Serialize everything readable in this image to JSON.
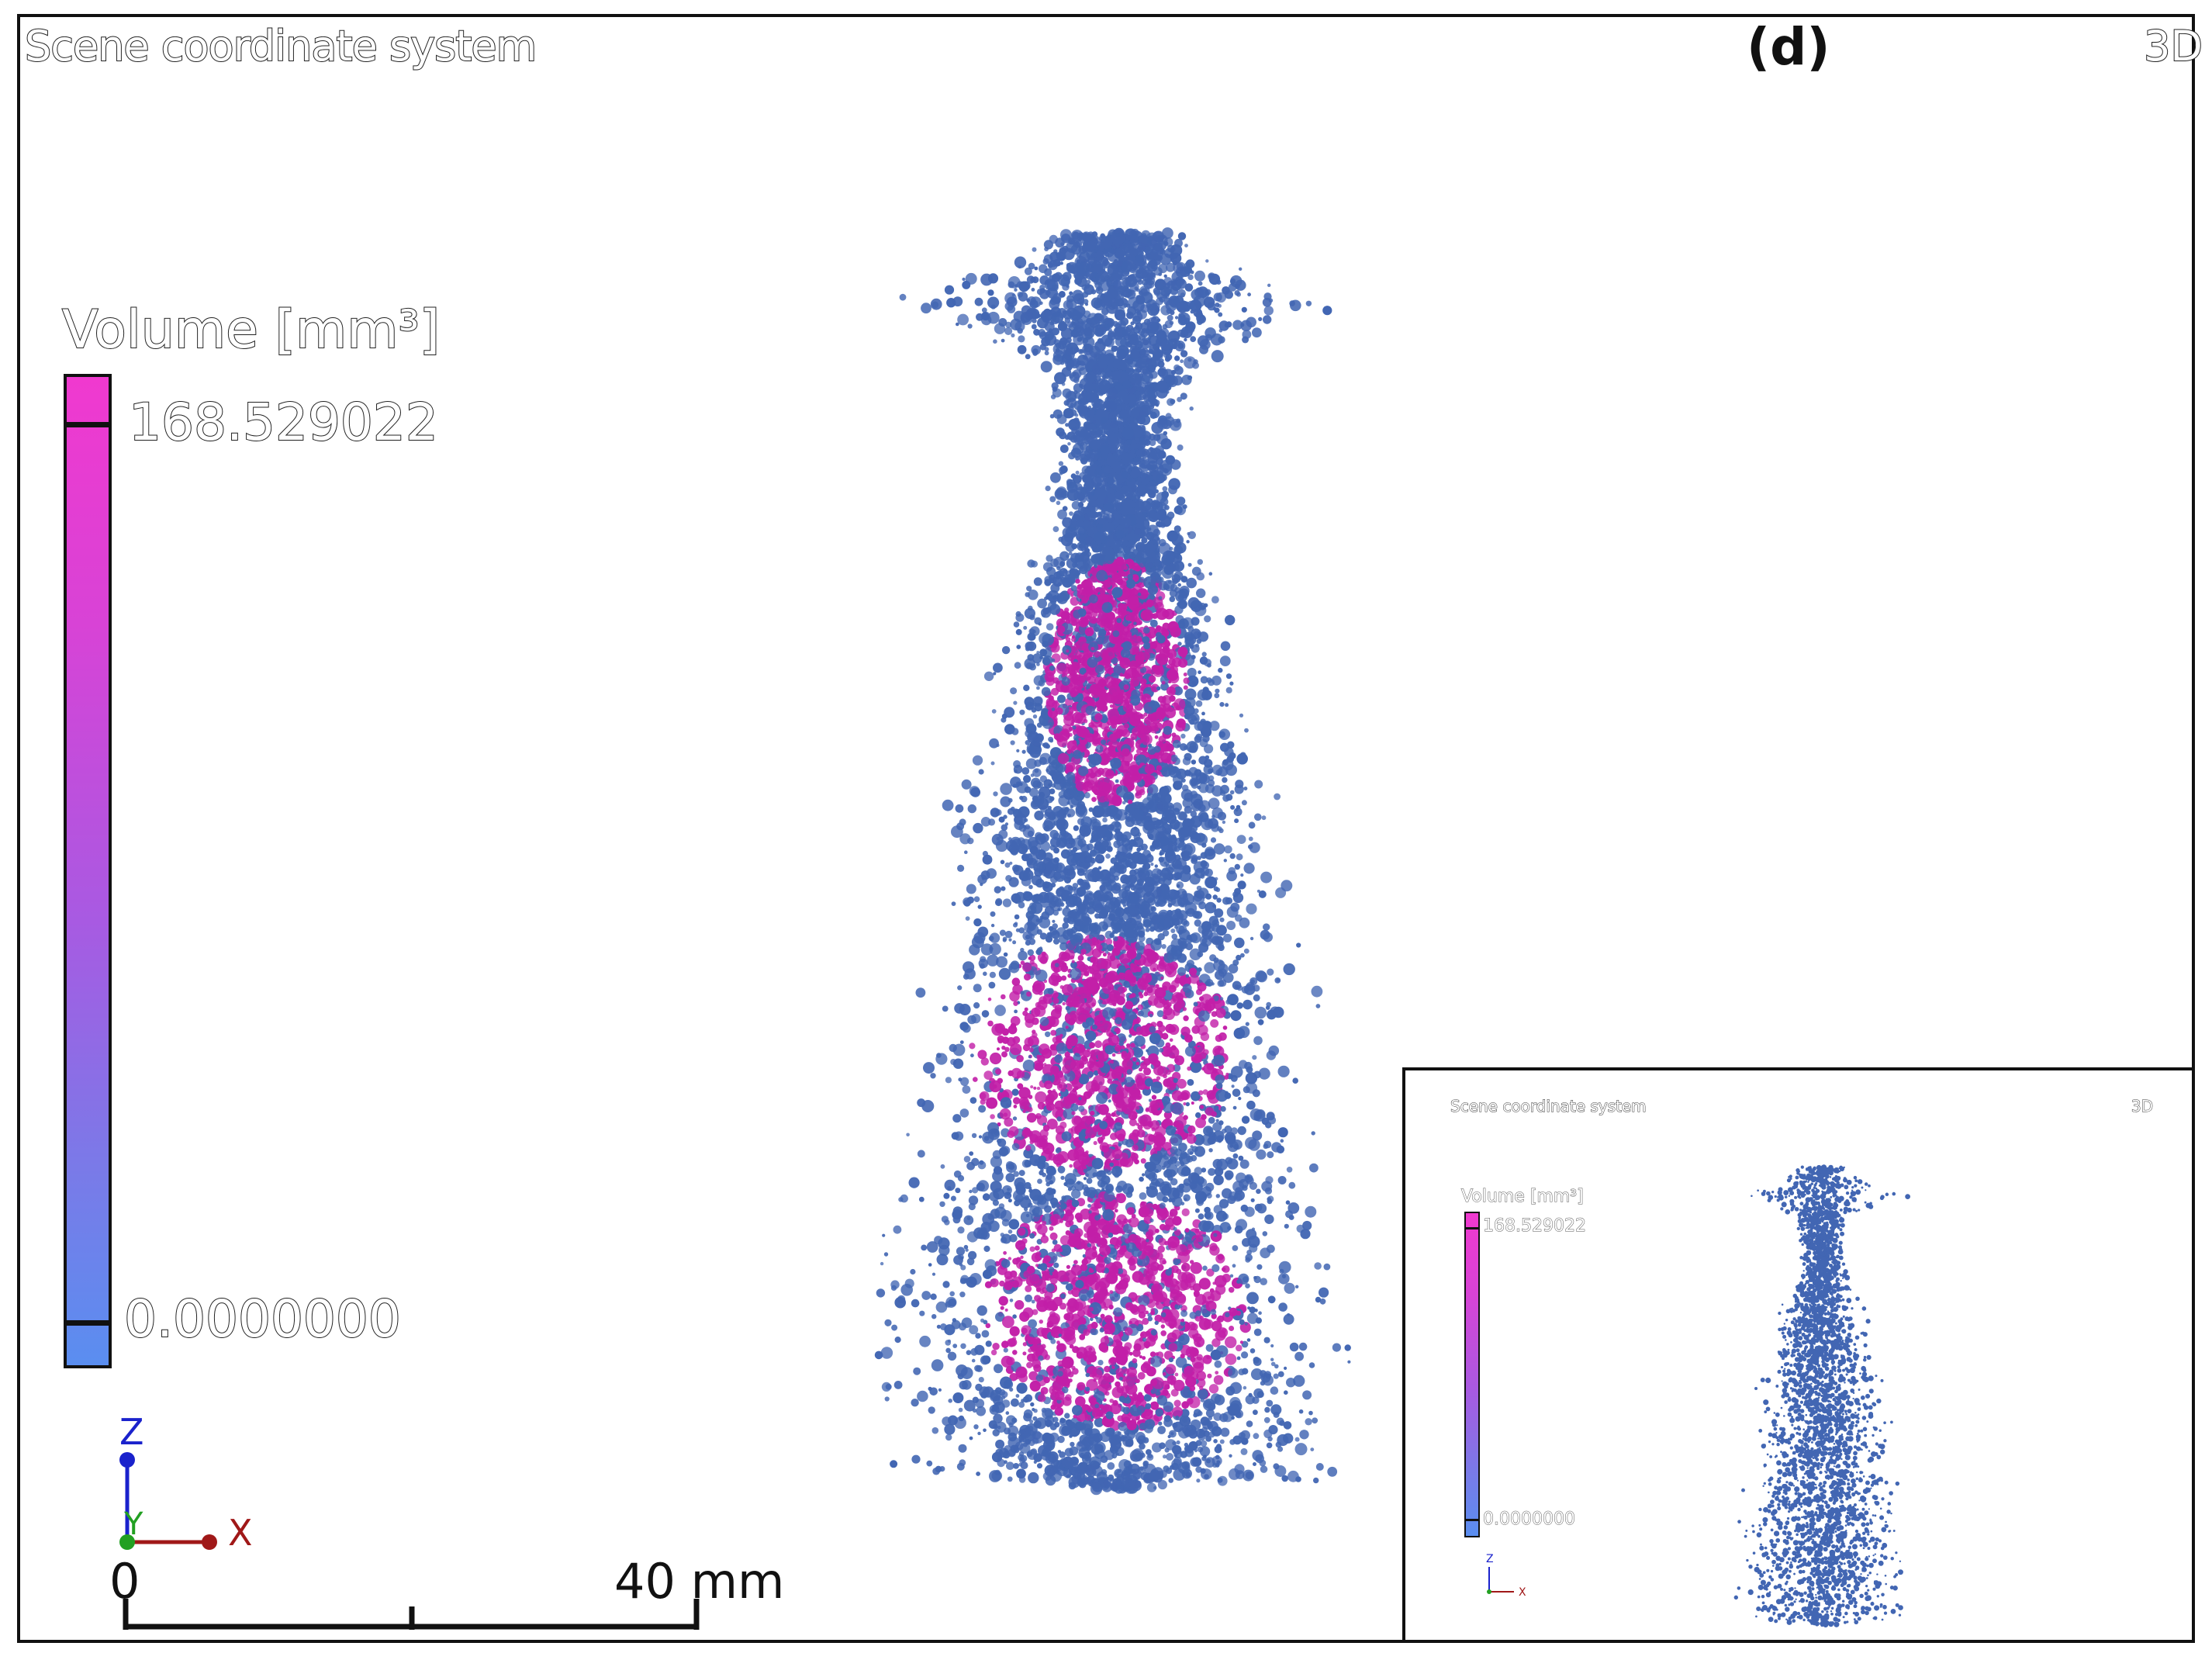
{
  "viewer": {
    "title": "Scene coordinate system",
    "panel_label": "(d)",
    "view_mode": "3D"
  },
  "colorbar": {
    "title": "Volume [mm³]",
    "max_value": "168.529022",
    "min_value": "0.0000000",
    "color_top": "#f039cf",
    "color_bottom": "#5a8ef0"
  },
  "axes": {
    "z_label": "Z",
    "y_label": "Y",
    "x_label": "X",
    "z_color": "#1a22cc",
    "y_color": "#22a022",
    "x_color": "#a01818"
  },
  "scalebar": {
    "start_label": "0",
    "length_label": "40 mm"
  },
  "scene": {
    "object_colors": {
      "small_pores": "#4266b3",
      "large_pores": "#c21fa8"
    }
  },
  "inset": {
    "title": "Scene coordinate system",
    "view_mode": "3D",
    "colorbar_title": "Volume [mm³]",
    "max_value": "168.529022",
    "min_value": "0.0000000",
    "z_label": "Z",
    "x_label": "X"
  }
}
